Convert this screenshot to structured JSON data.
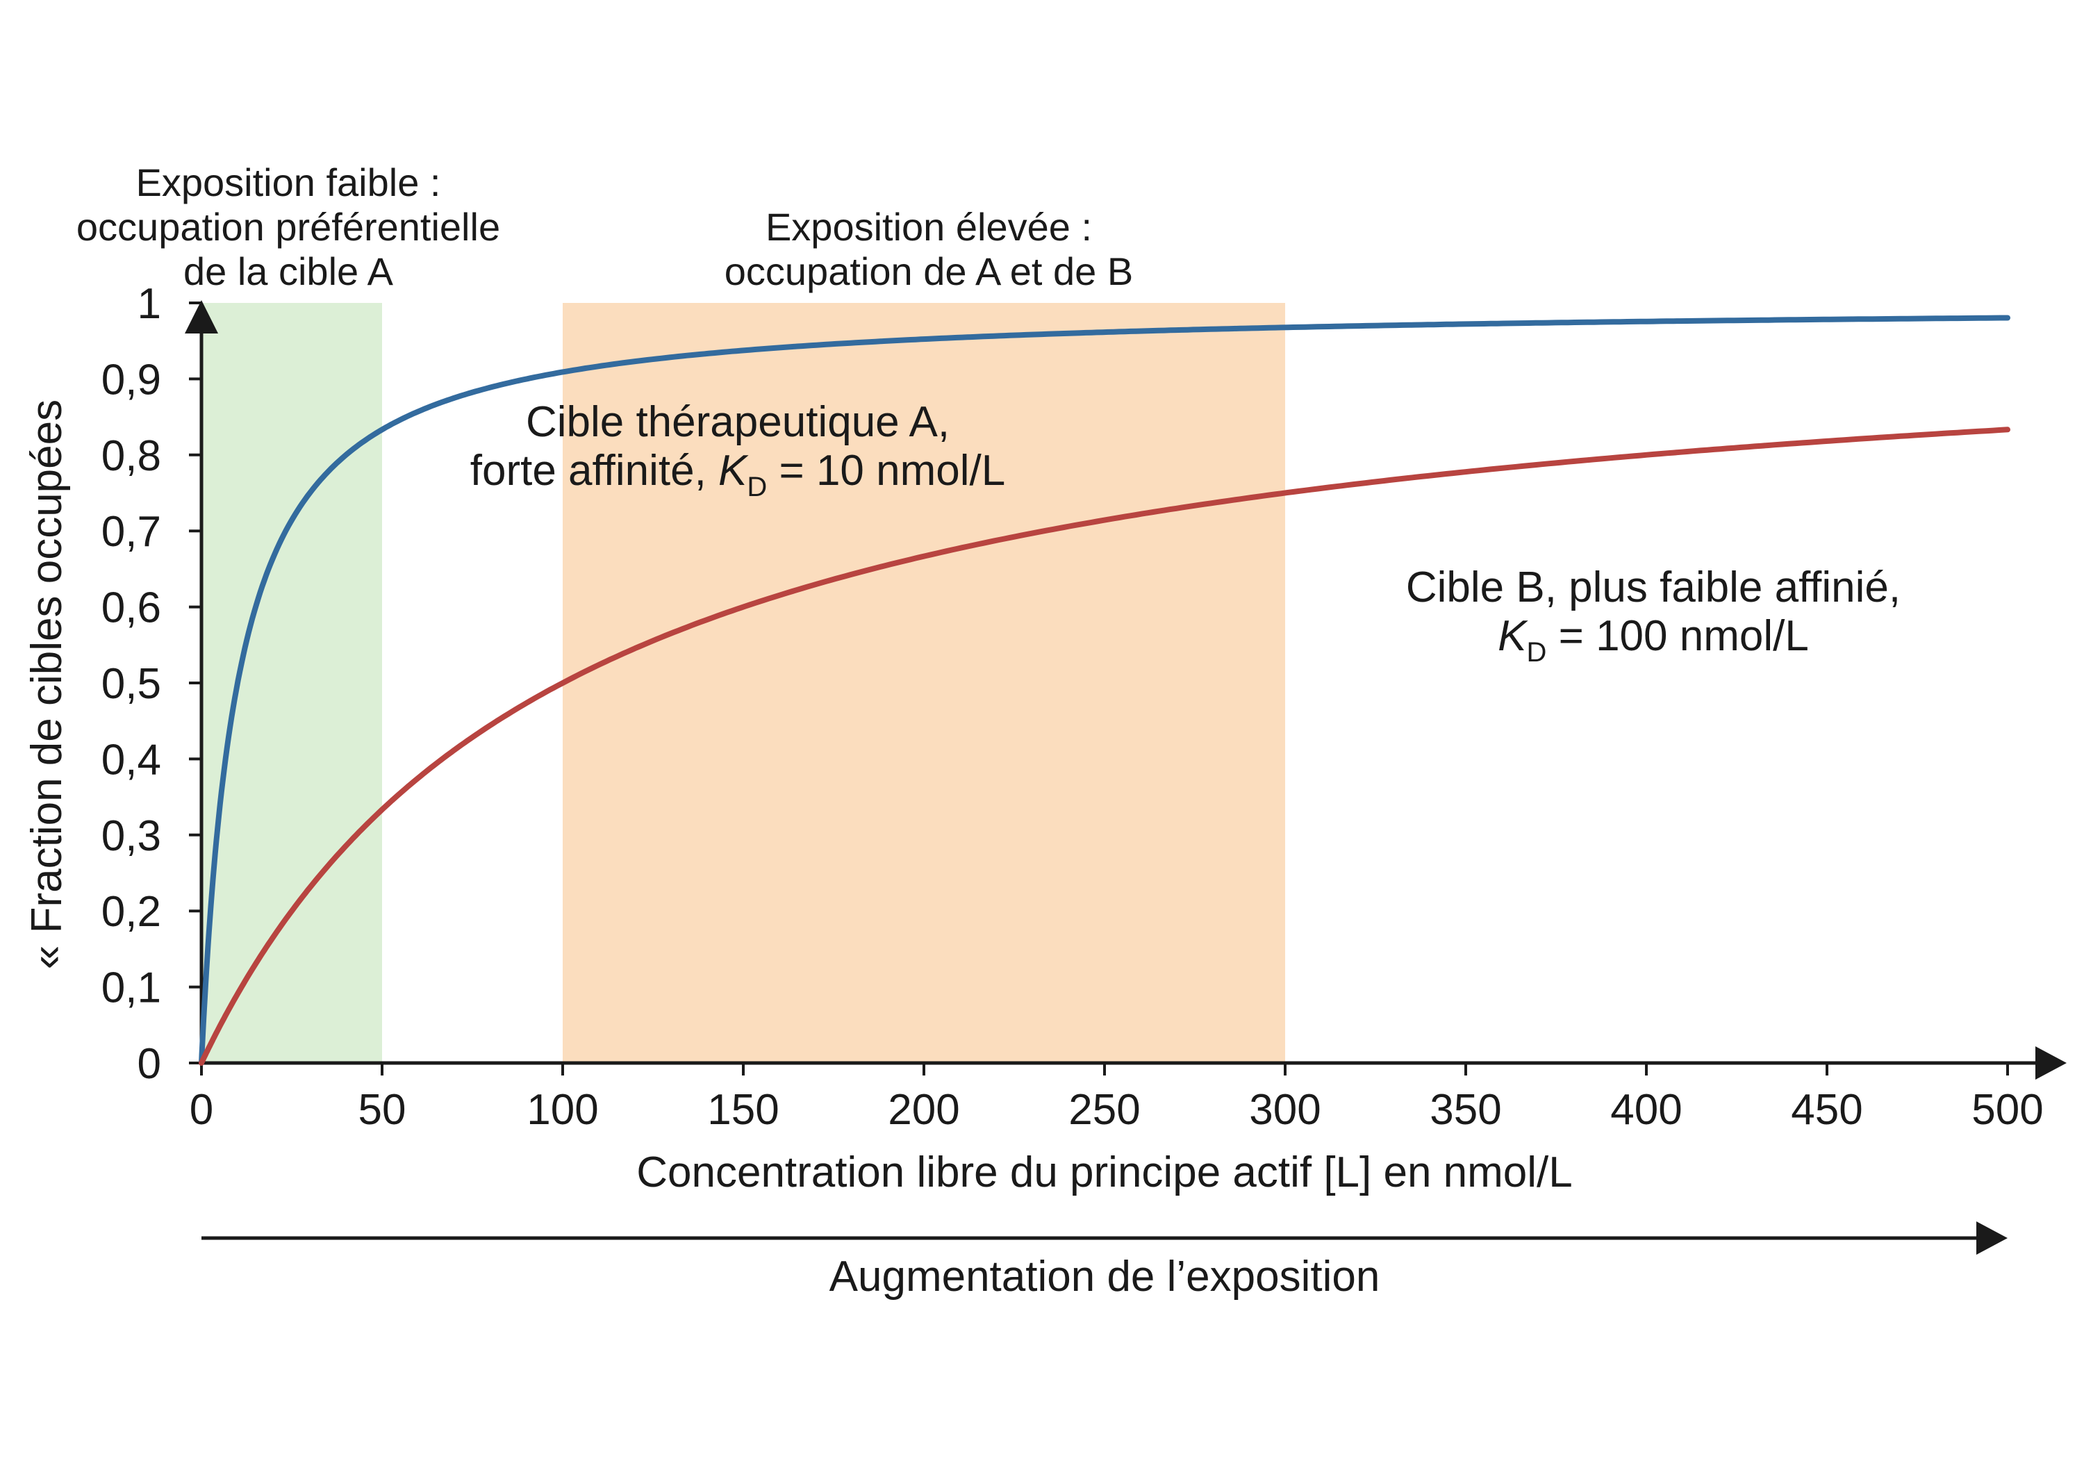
{
  "chart_data": {
    "type": "line",
    "xlabel": "Concentration libre du principe actif [L] en nmol/L",
    "ylabel": "« Fraction de cibles occupées",
    "xlim": [
      0,
      500
    ],
    "ylim": [
      0,
      1
    ],
    "x_ticks": [
      "0",
      "50",
      "100",
      "150",
      "200",
      "250",
      "300",
      "350",
      "400",
      "450",
      "500"
    ],
    "y_ticks": [
      "0",
      "0,1",
      "0,2",
      "0,3",
      "0,4",
      "0,5",
      "0,6",
      "0,7",
      "0,8",
      "0,9",
      "1"
    ],
    "exposure_arrow_label": "Augmentation de l’exposition",
    "regions": [
      {
        "x_range": [
          0,
          50
        ],
        "color": "#dcefd6",
        "label_lines": [
          "Exposition faible :",
          "occupation préférentielle",
          "de la cible A"
        ]
      },
      {
        "x_range": [
          100,
          300
        ],
        "color": "#fbddbe",
        "label_lines": [
          "Exposition élevée :",
          "occupation de A et de B"
        ]
      }
    ],
    "series": [
      {
        "color": "#336b9e",
        "kd": 10,
        "x": [
          0,
          5,
          10,
          20,
          30,
          40,
          50,
          75,
          100,
          150,
          200,
          250,
          300,
          350,
          400,
          450,
          500
        ],
        "y": [
          0,
          0.333,
          0.5,
          0.667,
          0.75,
          0.8,
          0.833,
          0.882,
          0.909,
          0.938,
          0.952,
          0.962,
          0.968,
          0.972,
          0.976,
          0.978,
          0.98
        ],
        "label_line1": "Cible thérapeutique A,",
        "label_line2_prefix": "forte affinité, ",
        "label_line2_var": "K",
        "label_line2_sub": "D",
        "label_line2_suffix": " = 10 nmol/L"
      },
      {
        "color": "#b84440",
        "kd": 100,
        "x": [
          0,
          25,
          50,
          100,
          150,
          200,
          250,
          300,
          350,
          400,
          450,
          500
        ],
        "y": [
          0,
          0.2,
          0.333,
          0.5,
          0.6,
          0.667,
          0.714,
          0.75,
          0.778,
          0.8,
          0.818,
          0.833
        ],
        "label_line1": "Cible B,   plus faible affinié,",
        "label_line2_prefix": "",
        "label_line2_var": "K",
        "label_line2_sub": "D",
        "label_line2_suffix": " = 100 nmol/L"
      }
    ]
  }
}
